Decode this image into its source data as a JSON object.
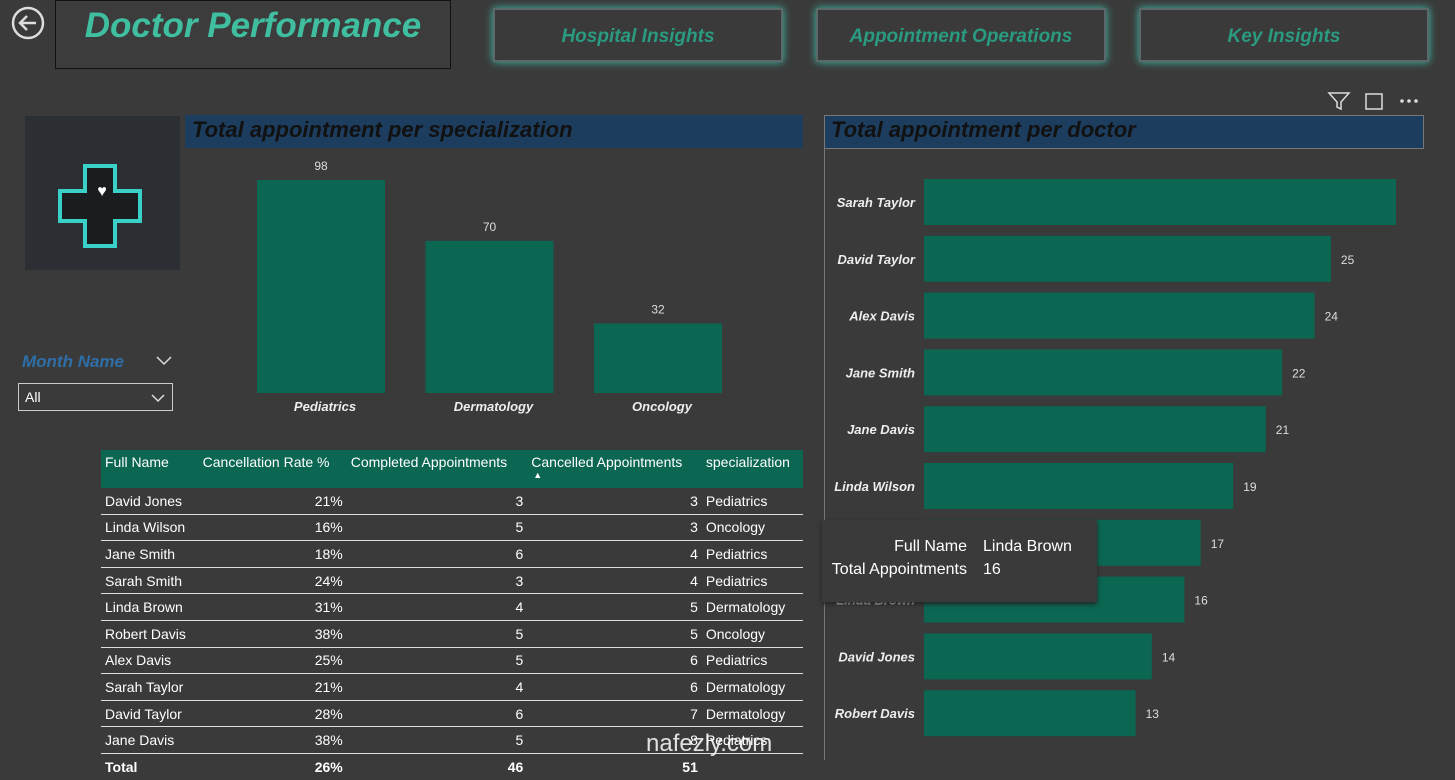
{
  "header": {
    "title": "Doctor Performance",
    "nav": [
      "Hospital Insights",
      "Appointment Operations",
      "Key Insights"
    ]
  },
  "slicer": {
    "label": "Month Name",
    "value": "All"
  },
  "chart_data": [
    {
      "type": "bar",
      "title": "Total appointment per specialization",
      "categories": [
        "Pediatrics",
        "Dermatology",
        "Oncology"
      ],
      "values": [
        98,
        70,
        32
      ],
      "color": "#0b6652"
    },
    {
      "type": "hbar",
      "title": "Total appointment per doctor",
      "categories": [
        "Sarah Taylor",
        "David Taylor",
        "Alex Davis",
        "Jane Smith",
        "Jane Davis",
        "Linda Wilson",
        null,
        "Linda Brown",
        "David Jones",
        "Robert Davis"
      ],
      "values": [
        29,
        25,
        24,
        22,
        21,
        19,
        17,
        16,
        14,
        13
      ],
      "value_labels": [
        null,
        "25",
        "24",
        "22",
        "21",
        "19",
        "17",
        "16",
        "14",
        "13"
      ],
      "color": "#0b6652"
    }
  ],
  "tooltip": {
    "rows": [
      [
        "Full Name",
        "Linda Brown"
      ],
      [
        "Total Appointments",
        "16"
      ]
    ]
  },
  "table": {
    "columns": [
      "Full Name",
      "Cancellation Rate %",
      "Completed Appointments",
      "Cancelled Appointments",
      "specialization"
    ],
    "rows": [
      [
        "David Jones",
        "21%",
        "3",
        "3",
        "Pediatrics"
      ],
      [
        "Linda Wilson",
        "16%",
        "5",
        "3",
        "Oncology"
      ],
      [
        "Jane Smith",
        "18%",
        "6",
        "4",
        "Pediatrics"
      ],
      [
        "Sarah Smith",
        "24%",
        "3",
        "4",
        "Pediatrics"
      ],
      [
        "Linda Brown",
        "31%",
        "4",
        "5",
        "Dermatology"
      ],
      [
        "Robert Davis",
        "38%",
        "5",
        "5",
        "Oncology"
      ],
      [
        "Alex Davis",
        "25%",
        "5",
        "6",
        "Pediatrics"
      ],
      [
        "Sarah Taylor",
        "21%",
        "4",
        "6",
        "Dermatology"
      ],
      [
        "David Taylor",
        "28%",
        "6",
        "7",
        "Dermatology"
      ],
      [
        "Jane Davis",
        "38%",
        "5",
        "8",
        "Pediatrics"
      ]
    ],
    "total": [
      "Total",
      "26%",
      "46",
      "51"
    ]
  },
  "watermark": "nafezly.com"
}
